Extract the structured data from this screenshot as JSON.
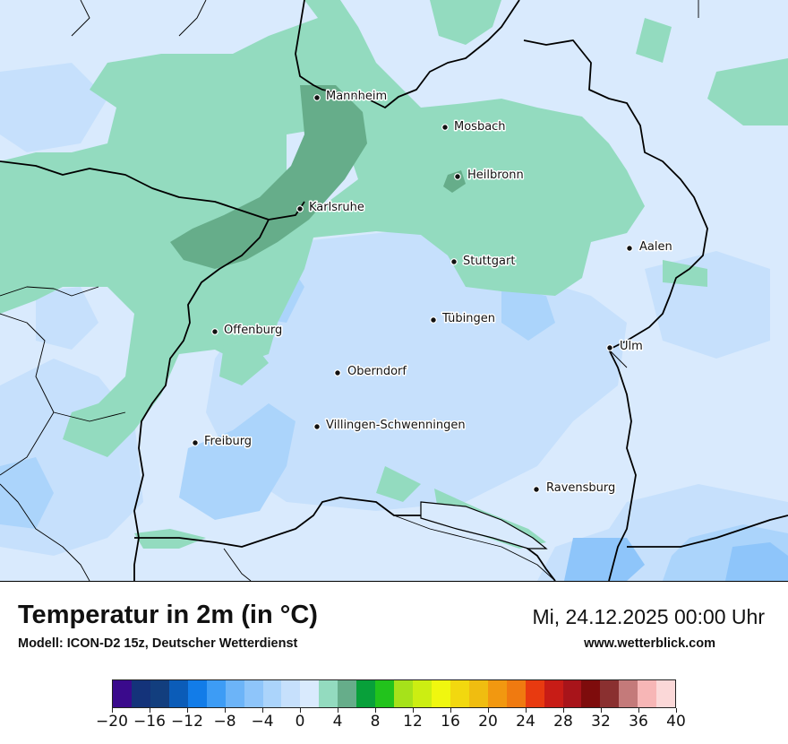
{
  "header": {
    "title": "Temperatur in 2m (in °C)",
    "model": "Modell: ICON-D2 15z, Deutscher Wetterdienst",
    "datetime": "Mi, 24.12.2025 00:00 Uhr",
    "website": "www.wetterblick.com"
  },
  "map": {
    "cities": [
      {
        "name": "Mannheim"
      },
      {
        "name": "Mosbach"
      },
      {
        "name": "Heilbronn"
      },
      {
        "name": "Karlsruhe"
      },
      {
        "name": "Aalen"
      },
      {
        "name": "Stuttgart"
      },
      {
        "name": "Tübingen"
      },
      {
        "name": "Offenburg"
      },
      {
        "name": "Ulm"
      },
      {
        "name": "Oberndorf"
      },
      {
        "name": "Villingen-Schwenningen"
      },
      {
        "name": "Freiburg"
      },
      {
        "name": "Ravensburg"
      }
    ]
  },
  "legend": {
    "colors": [
      "#3a0a8c",
      "#14337a",
      "#123e7e",
      "#0b5cb8",
      "#127ce8",
      "#3d9cf5",
      "#6cb4f8",
      "#8ec5fa",
      "#abd4fb",
      "#c6e0fc",
      "#d9eafd",
      "#93dbbf",
      "#66ad8a",
      "#08a03a",
      "#22c31c",
      "#a6e21a",
      "#ccee12",
      "#f0f70f",
      "#f2d80f",
      "#f0bd10",
      "#f29810",
      "#f07a10",
      "#e83a10",
      "#c81c16",
      "#a8141a",
      "#7e0c0c",
      "#8a3030",
      "#c47a7a",
      "#f7b6b6",
      "#fbd8d8"
    ],
    "ticks": [
      "−20",
      "−16",
      "−12",
      "−8",
      "−4",
      "0",
      "4",
      "8",
      "12",
      "16",
      "20",
      "24",
      "28",
      "32",
      "36",
      "40"
    ],
    "min": -20,
    "max": 40
  }
}
